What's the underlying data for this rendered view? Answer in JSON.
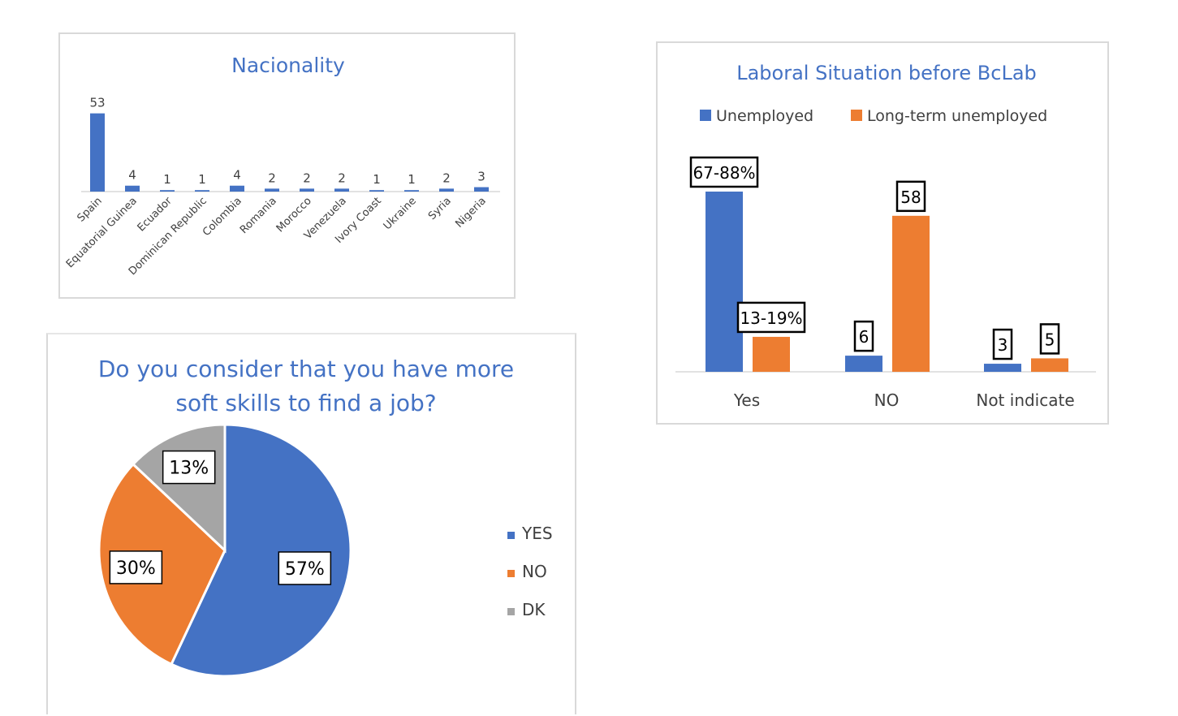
{
  "chart_data": [
    {
      "type": "bar",
      "title": "Nacionality",
      "categories": [
        "Spain",
        "Equatorial Guinea",
        "Ecuador",
        "Dominican Republic",
        "Colombia",
        "Romania",
        "Morocco",
        "Venezuela",
        "Ivory Coast",
        "Ukraine",
        "Syria",
        "Nigeria"
      ],
      "values": [
        53,
        4,
        1,
        1,
        4,
        2,
        2,
        2,
        1,
        1,
        2,
        3
      ],
      "data_labels": [
        "53",
        "4",
        "1",
        "1",
        "4",
        "2",
        "2",
        "2",
        "1",
        "1",
        "2",
        "3"
      ],
      "ylim": [
        0,
        55
      ],
      "colors": {
        "bar": "#4472c4",
        "title": "#4472c4"
      }
    },
    {
      "type": "bar",
      "title": "Laboral Situation before BcLab",
      "categories": [
        "Yes",
        "NO",
        "Not indicate"
      ],
      "series": [
        {
          "name": "Unemployed",
          "values": [
            67,
            6,
            3
          ],
          "labels": [
            "67-88%",
            "6",
            "3"
          ],
          "color": "#4472c4"
        },
        {
          "name": "Long-term unemployed",
          "values": [
            13,
            58,
            5
          ],
          "labels": [
            "13-19%",
            "58",
            "5"
          ],
          "color": "#ed7d31"
        }
      ],
      "ylim": [
        0,
        67
      ],
      "legend": "top"
    },
    {
      "type": "pie",
      "title": "Do you consider that you have more soft skills to find a job?",
      "title_lines": [
        "Do you consider that you have more",
        "soft skills to find a job?"
      ],
      "categories": [
        "YES",
        "NO",
        "DK"
      ],
      "values": [
        57,
        30,
        13
      ],
      "labels": [
        "57%",
        "30%",
        "13%"
      ],
      "colors": [
        "#4472c4",
        "#ed7d31",
        "#a5a5a5"
      ],
      "legend": "right"
    }
  ]
}
